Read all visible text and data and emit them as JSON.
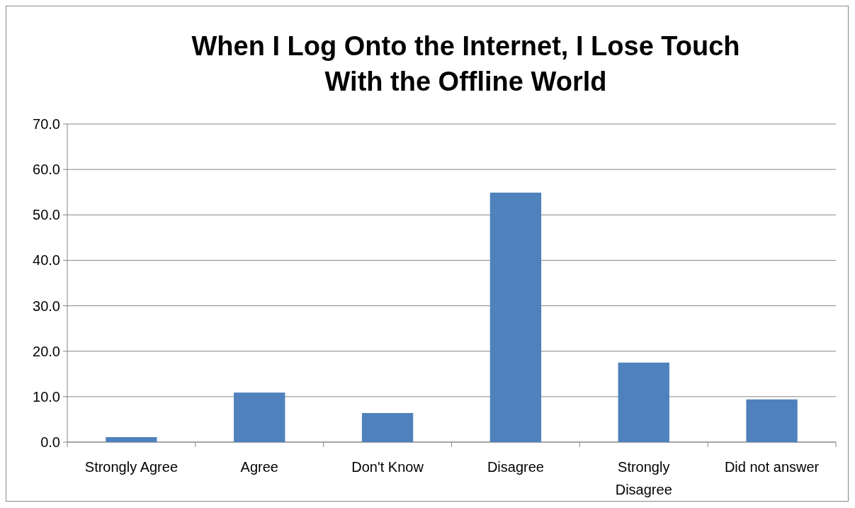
{
  "chart_data": {
    "type": "bar",
    "title": "When I Log Onto the Internet, I Lose Touch With the Offline World",
    "categories": [
      "Strongly Agree",
      "Agree",
      "Don't Know",
      "Disagree",
      "Strongly Disagree",
      "Did not answer"
    ],
    "values": [
      1.1,
      10.9,
      6.4,
      54.9,
      17.5,
      9.4
    ],
    "color": "#4f81bd",
    "ylim": [
      0,
      70
    ],
    "yticks": [
      {
        "value": 0,
        "label": "0.0"
      },
      {
        "value": 10,
        "label": "10.0"
      },
      {
        "value": 20,
        "label": "20.0"
      },
      {
        "value": 30,
        "label": "30.0"
      },
      {
        "value": 40,
        "label": "40.0"
      },
      {
        "value": 50,
        "label": "50.0"
      },
      {
        "value": 60,
        "label": "60.0"
      },
      {
        "value": 70,
        "label": "70.0"
      }
    ],
    "grid": "y"
  }
}
